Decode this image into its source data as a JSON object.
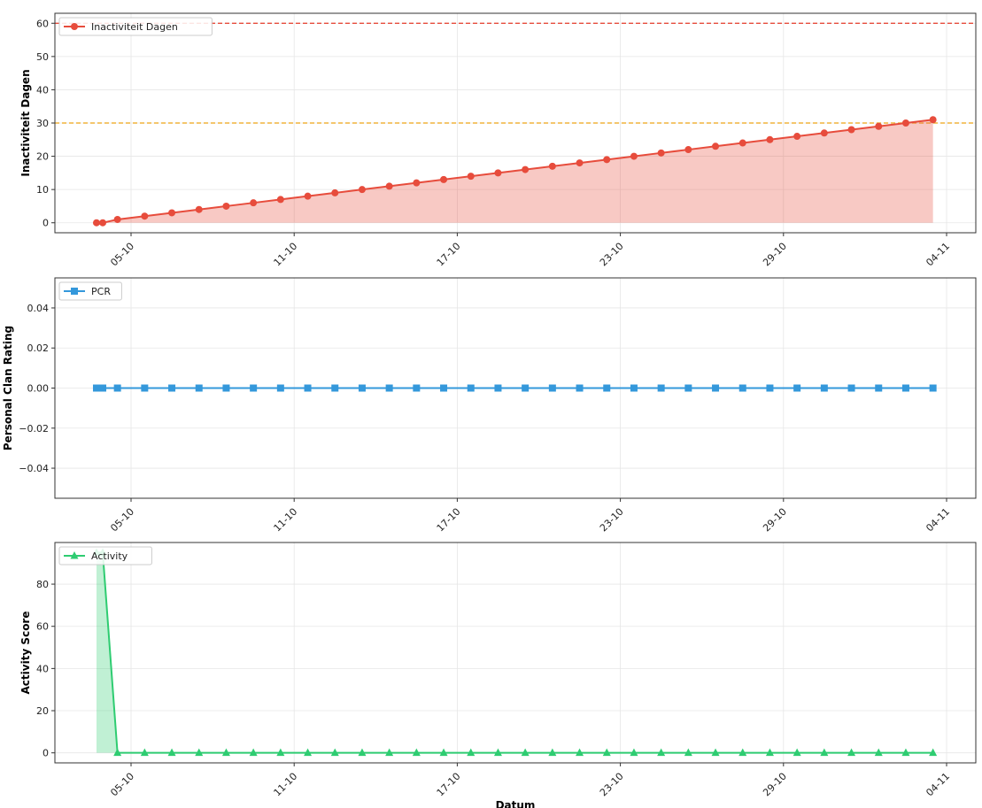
{
  "chart_data": [
    {
      "type": "area",
      "ylabel": "Inactiviteit Dagen",
      "xlabel": "",
      "ylim": [
        -3,
        63
      ],
      "yticks": [
        0,
        10,
        20,
        30,
        40,
        50,
        60
      ],
      "x_format": "DD-MM HH:MM",
      "xticks": [
        "05-10",
        "11-10",
        "17-10",
        "23-10",
        "29-10",
        "04-11"
      ],
      "grid": true,
      "legend": "top-left",
      "hlines": [
        {
          "y": 60,
          "color": "#e74c3c",
          "style": "dashed"
        },
        {
          "y": 30,
          "color": "#f0b43c",
          "style": "dashed"
        }
      ],
      "series": [
        {
          "name": "Inactiviteit Dagen",
          "color": "#e74c3c",
          "marker": "circle",
          "fill": true,
          "x": [
            "03-10 17:30",
            "03-10 23:00",
            "04-10 12:00",
            "05-10 12:00",
            "06-10 12:00",
            "07-10 12:00",
            "08-10 12:00",
            "09-10 12:00",
            "10-10 12:00",
            "11-10 12:00",
            "12-10 12:00",
            "13-10 12:00",
            "14-10 12:00",
            "15-10 12:00",
            "16-10 12:00",
            "17-10 12:00",
            "18-10 12:00",
            "19-10 12:00",
            "20-10 12:00",
            "21-10 12:00",
            "22-10 12:00",
            "23-10 12:00",
            "24-10 12:00",
            "25-10 12:00",
            "26-10 12:00",
            "27-10 12:00",
            "28-10 12:00",
            "29-10 12:00",
            "30-10 12:00",
            "31-10 12:00",
            "01-11 12:00",
            "02-11 12:00",
            "03-11 12:00"
          ],
          "values": [
            0,
            0,
            1,
            2,
            3,
            4,
            5,
            6,
            7,
            8,
            9,
            10,
            11,
            12,
            13,
            14,
            15,
            16,
            17,
            18,
            19,
            20,
            21,
            22,
            23,
            24,
            25,
            26,
            27,
            28,
            29,
            30,
            31
          ]
        }
      ]
    },
    {
      "type": "line",
      "ylabel": "Personal Clan Rating",
      "xlabel": "",
      "ylim": [
        -0.055,
        0.055
      ],
      "yticks": [
        -0.04,
        -0.02,
        0.0,
        0.02,
        0.04
      ],
      "xticks": [
        "05-10",
        "11-10",
        "17-10",
        "23-10",
        "29-10",
        "04-11"
      ],
      "grid": true,
      "legend": "top-left",
      "series": [
        {
          "name": "PCR",
          "color": "#3498db",
          "marker": "square",
          "fill": false,
          "values": [
            0,
            0,
            0,
            0,
            0,
            0,
            0,
            0,
            0,
            0,
            0,
            0,
            0,
            0,
            0,
            0,
            0,
            0,
            0,
            0,
            0,
            0,
            0,
            0,
            0,
            0,
            0,
            0,
            0,
            0,
            0,
            0,
            0
          ]
        }
      ]
    },
    {
      "type": "area",
      "ylabel": "Activity Score",
      "xlabel": "Datum",
      "ylim": [
        -4.75,
        99.75
      ],
      "yticks": [
        0,
        20,
        40,
        60,
        80
      ],
      "xticks": [
        "05-10",
        "11-10",
        "17-10",
        "23-10",
        "29-10",
        "04-11"
      ],
      "grid": true,
      "legend": "top-left",
      "series": [
        {
          "name": "Activity",
          "color": "#2ecc71",
          "marker": "triangle",
          "fill": true,
          "values": [
            95,
            95,
            0,
            0,
            0,
            0,
            0,
            0,
            0,
            0,
            0,
            0,
            0,
            0,
            0,
            0,
            0,
            0,
            0,
            0,
            0,
            0,
            0,
            0,
            0,
            0,
            0,
            0,
            0,
            0,
            0,
            0,
            0
          ]
        }
      ]
    }
  ]
}
